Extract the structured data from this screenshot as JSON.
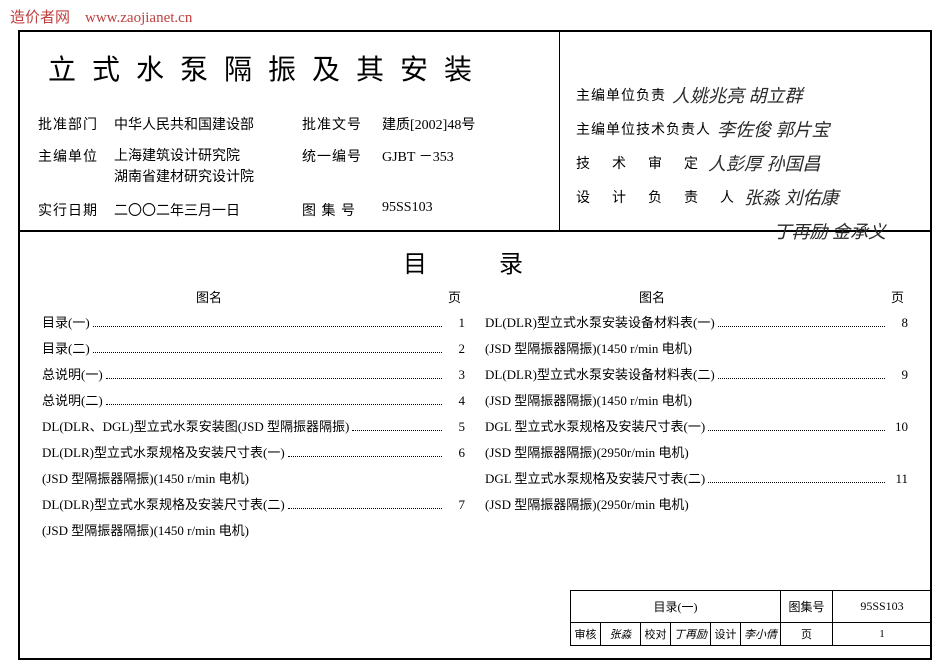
{
  "watermark": "造价者网　www.zaojianet.cn",
  "header": {
    "title": "立式水泵隔振及其安装",
    "left": {
      "approval_dept_label": "批准部门",
      "approval_dept": "中华人民共和国建设部",
      "editor_unit_label": "主编单位",
      "editor_unit": "上海建筑设计研究院\n湖南省建材研究设计院",
      "effective_date_label": "实行日期",
      "effective_date": "二〇〇二年三月一日",
      "approval_doc_label": "批准文号",
      "approval_doc": "建质[2002]48号",
      "unified_no_label": "统一编号",
      "unified_no": "GJBT －353",
      "atlas_no_label": "图 集 号",
      "atlas_no": "95SS103"
    },
    "right": {
      "r1_label": "主编单位负责",
      "r1_val": "人姚兆亮 胡立群",
      "r2_label": "主编单位技术负责人",
      "r2_val": "李佐俊 郭片宝",
      "r3_label": "技　术　审　定",
      "r3_val": "人彭厚 孙国昌",
      "r4_label": "设　计　负　责　人",
      "r4_val": "张淼 刘佑康",
      "r5_val": "丁再励 金承义"
    }
  },
  "toc": {
    "title": "目　录",
    "head_name": "图名",
    "head_page": "页",
    "left": [
      {
        "name": "目录(一)",
        "page": "1"
      },
      {
        "name": "目录(二)",
        "page": "2"
      },
      {
        "name": "总说明(一)",
        "page": "3"
      },
      {
        "name": "总说明(二)",
        "page": "4"
      },
      {
        "name": "DL(DLR、DGL)型立式水泵安装图(JSD 型隔振器隔振)",
        "page": "5"
      },
      {
        "name": "DL(DLR)型立式水泵规格及安装尺寸表(一)",
        "page": "6"
      },
      {
        "sub": "(JSD 型隔振器隔振)(1450 r/min 电机)"
      },
      {
        "name": "DL(DLR)型立式水泵规格及安装尺寸表(二)",
        "page": "7"
      },
      {
        "sub": "(JSD 型隔振器隔振)(1450 r/min 电机)"
      }
    ],
    "right": [
      {
        "name": "DL(DLR)型立式水泵安装设备材料表(一)",
        "page": "8"
      },
      {
        "sub": "(JSD 型隔振器隔振)(1450 r/min 电机)"
      },
      {
        "name": "DL(DLR)型立式水泵安装设备材料表(二)",
        "page": "9"
      },
      {
        "sub": "(JSD 型隔振器隔振)(1450 r/min 电机)"
      },
      {
        "name": "DGL 型立式水泵规格及安装尺寸表(一)",
        "page": "10"
      },
      {
        "sub": "(JSD 型隔振器隔振)(2950r/min 电机)"
      },
      {
        "name": "DGL 型立式水泵规格及安装尺寸表(二)",
        "page": "11"
      },
      {
        "sub": "(JSD 型隔振器隔振)(2950r/min 电机)"
      }
    ]
  },
  "footer": {
    "page_name": "目录(一)",
    "atlas_label": "图集号",
    "atlas_no": "95SS103",
    "review_label": "审核",
    "review_val": "张淼",
    "proof_label": "校对",
    "proof_val": "丁再励",
    "design_label": "设计",
    "design_val": "李小倩",
    "page_label": "页",
    "page_no": "1"
  },
  "colors": {
    "watermark": "#c04040",
    "text": "#000000",
    "bg": "#ffffff"
  }
}
